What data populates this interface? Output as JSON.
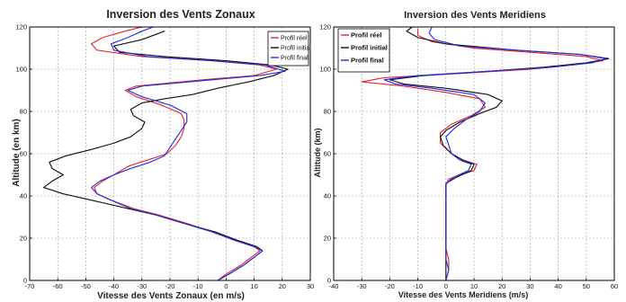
{
  "chart_data": [
    {
      "type": "line",
      "title": "Inversion des Vents Zonaux",
      "xlabel": "Vitesse des Vents Zonaux (en m/s)",
      "ylabel": "Altitude (en km)",
      "xlim": [
        -70,
        30
      ],
      "ylim": [
        0,
        120
      ],
      "xticks": [
        "-70",
        "-60",
        "-50",
        "-40",
        "-30",
        "-20",
        "-10",
        "0",
        "10",
        "20",
        "30"
      ],
      "yticks": [
        "0",
        "20",
        "40",
        "60",
        "80",
        "100",
        "120"
      ],
      "grid": true,
      "legend_position": "top-right",
      "series": [
        {
          "name": "Profil réel",
          "color": "#e8262a",
          "points": [
            [
              -3,
              0
            ],
            [
              0,
              3
            ],
            [
              5,
              7
            ],
            [
              9,
              11
            ],
            [
              12,
              14
            ],
            [
              10,
              16
            ],
            [
              3,
              19
            ],
            [
              -5,
              23
            ],
            [
              -14,
              27
            ],
            [
              -24,
              31
            ],
            [
              -33,
              34
            ],
            [
              -41,
              38
            ],
            [
              -46,
              41
            ],
            [
              -47,
              44
            ],
            [
              -44,
              47
            ],
            [
              -40,
              50
            ],
            [
              -35,
              54
            ],
            [
              -28,
              57
            ],
            [
              -21,
              60
            ],
            [
              -18,
              64
            ],
            [
              -16,
              68
            ],
            [
              -15,
              72
            ],
            [
              -15,
              76
            ],
            [
              -16,
              79
            ],
            [
              -23,
              83
            ],
            [
              -32,
              87
            ],
            [
              -36,
              90
            ],
            [
              -32,
              92
            ],
            [
              -8,
              95
            ],
            [
              10,
              97
            ],
            [
              18,
              100
            ],
            [
              12,
              102
            ],
            [
              -5,
              104
            ],
            [
              -30,
              106
            ],
            [
              -46,
              109
            ],
            [
              -48,
              112
            ],
            [
              -44,
              115
            ],
            [
              -36,
              118
            ],
            [
              -30,
              120
            ]
          ]
        },
        {
          "name": "Profil initial",
          "color": "#111111",
          "points": [
            [
              -3,
              0
            ],
            [
              1,
              3
            ],
            [
              6,
              7
            ],
            [
              10,
              11
            ],
            [
              13,
              14
            ],
            [
              11,
              16
            ],
            [
              4,
              19
            ],
            [
              -4,
              23
            ],
            [
              -15,
              27
            ],
            [
              -25,
              31
            ],
            [
              -35,
              34
            ],
            [
              -48,
              38
            ],
            [
              -58,
              41
            ],
            [
              -65,
              44
            ],
            [
              -62,
              47
            ],
            [
              -58,
              50
            ],
            [
              -62,
              53
            ],
            [
              -63,
              56
            ],
            [
              -57,
              59
            ],
            [
              -48,
              62
            ],
            [
              -40,
              65
            ],
            [
              -34,
              68
            ],
            [
              -30,
              72
            ],
            [
              -29,
              75
            ],
            [
              -33,
              78
            ],
            [
              -34,
              81
            ],
            [
              -30,
              84
            ],
            [
              -22,
              86
            ],
            [
              -12,
              88
            ],
            [
              -3,
              91
            ],
            [
              8,
              94
            ],
            [
              17,
              97
            ],
            [
              22,
              100
            ],
            [
              16,
              102
            ],
            [
              0,
              104
            ],
            [
              -22,
              106
            ],
            [
              -38,
              108
            ],
            [
              -40,
              111
            ],
            [
              -30,
              114
            ],
            [
              -22,
              118
            ]
          ]
        },
        {
          "name": "Profil final",
          "color": "#2230e8",
          "points": [
            [
              -3,
              0
            ],
            [
              1,
              3
            ],
            [
              6,
              7
            ],
            [
              10,
              11
            ],
            [
              13,
              14
            ],
            [
              10,
              16
            ],
            [
              3,
              19
            ],
            [
              -5,
              23
            ],
            [
              -15,
              27
            ],
            [
              -25,
              31
            ],
            [
              -34,
              34
            ],
            [
              -41,
              38
            ],
            [
              -46,
              41
            ],
            [
              -48,
              44
            ],
            [
              -45,
              47
            ],
            [
              -40,
              50
            ],
            [
              -34,
              53
            ],
            [
              -27,
              56
            ],
            [
              -22,
              59
            ],
            [
              -20,
              63
            ],
            [
              -18,
              67
            ],
            [
              -16,
              71
            ],
            [
              -14,
              75
            ],
            [
              -14,
              79
            ],
            [
              -20,
              83
            ],
            [
              -30,
              87
            ],
            [
              -35,
              90
            ],
            [
              -30,
              92
            ],
            [
              -5,
              95
            ],
            [
              12,
              97
            ],
            [
              21,
              99
            ],
            [
              14,
              102
            ],
            [
              -5,
              104
            ],
            [
              -28,
              106
            ],
            [
              -40,
              109
            ],
            [
              -41,
              112
            ],
            [
              -35,
              115
            ],
            [
              -30,
              118
            ],
            [
              -26,
              120
            ]
          ]
        }
      ]
    },
    {
      "type": "line",
      "title": "Inversion des Vents Meridiens",
      "xlabel": "Vitesse des Vents Meridiens (m/s)",
      "ylabel": "Altitude (km)",
      "xlim": [
        -40,
        60
      ],
      "ylim": [
        0,
        120
      ],
      "xticks": [
        "-40",
        "-30",
        "-20",
        "-10",
        "0",
        "10",
        "20",
        "30",
        "40",
        "50",
        "60"
      ],
      "yticks": [
        "0",
        "20",
        "40",
        "60",
        "80",
        "100",
        "120"
      ],
      "grid": true,
      "legend_position": "top-left",
      "series": [
        {
          "name": "Profil réel",
          "color": "#e8262a",
          "points": [
            [
              0,
              0
            ],
            [
              1,
              5
            ],
            [
              1,
              10
            ],
            [
              0,
              15
            ],
            [
              0,
              20
            ],
            [
              0,
              30
            ],
            [
              0,
              40
            ],
            [
              0,
              45
            ],
            [
              1,
              48
            ],
            [
              5,
              50
            ],
            [
              10,
              52
            ],
            [
              11,
              55
            ],
            [
              6,
              57
            ],
            [
              2,
              60
            ],
            [
              -2,
              65
            ],
            [
              -2,
              70
            ],
            [
              2,
              74
            ],
            [
              9,
              78
            ],
            [
              14,
              82
            ],
            [
              12,
              86
            ],
            [
              0,
              89
            ],
            [
              -15,
              92
            ],
            [
              -30,
              94
            ],
            [
              -22,
              96
            ],
            [
              5,
              98
            ],
            [
              30,
              100
            ],
            [
              45,
              102
            ],
            [
              56,
              104
            ],
            [
              50,
              106
            ],
            [
              30,
              108
            ],
            [
              10,
              110
            ],
            [
              -5,
              113
            ],
            [
              -10,
              116
            ],
            [
              -10,
              119
            ]
          ]
        },
        {
          "name": "Profil initial",
          "color": "#111111",
          "points": [
            [
              0,
              0
            ],
            [
              0,
              5
            ],
            [
              0,
              10
            ],
            [
              0,
              20
            ],
            [
              0,
              30
            ],
            [
              0,
              40
            ],
            [
              0,
              46
            ],
            [
              4,
              49
            ],
            [
              9,
              52
            ],
            [
              10,
              55
            ],
            [
              6,
              57
            ],
            [
              2,
              60
            ],
            [
              -1,
              64
            ],
            [
              -2,
              68
            ],
            [
              0,
              71
            ],
            [
              5,
              75
            ],
            [
              12,
              79
            ],
            [
              18,
              82
            ],
            [
              20,
              85
            ],
            [
              15,
              88
            ],
            [
              0,
              91
            ],
            [
              -15,
              93
            ],
            [
              -20,
              95
            ],
            [
              -8,
              97
            ],
            [
              15,
              99
            ],
            [
              35,
              101
            ],
            [
              50,
              103
            ],
            [
              58,
              105
            ],
            [
              48,
              107
            ],
            [
              25,
              109
            ],
            [
              0,
              112
            ],
            [
              -10,
              115
            ],
            [
              -14,
              118
            ],
            [
              -12,
              120
            ]
          ]
        },
        {
          "name": "Profil final",
          "color": "#2230e8",
          "points": [
            [
              0,
              0
            ],
            [
              1,
              5
            ],
            [
              0,
              10
            ],
            [
              0,
              20
            ],
            [
              0,
              30
            ],
            [
              0,
              40
            ],
            [
              0,
              46
            ],
            [
              3,
              49
            ],
            [
              8,
              52
            ],
            [
              9,
              55
            ],
            [
              5,
              57
            ],
            [
              2,
              60
            ],
            [
              1,
              64
            ],
            [
              0,
              68
            ],
            [
              3,
              72
            ],
            [
              7,
              76
            ],
            [
              12,
              80
            ],
            [
              14,
              84
            ],
            [
              10,
              88
            ],
            [
              -5,
              91
            ],
            [
              -18,
              93
            ],
            [
              -22,
              95
            ],
            [
              -10,
              97
            ],
            [
              15,
              99
            ],
            [
              38,
              101
            ],
            [
              52,
              103
            ],
            [
              57,
              105
            ],
            [
              48,
              107
            ],
            [
              25,
              109
            ],
            [
              5,
              111
            ],
            [
              -4,
              114
            ],
            [
              -6,
              117
            ],
            [
              -5,
              120
            ]
          ]
        }
      ]
    }
  ]
}
